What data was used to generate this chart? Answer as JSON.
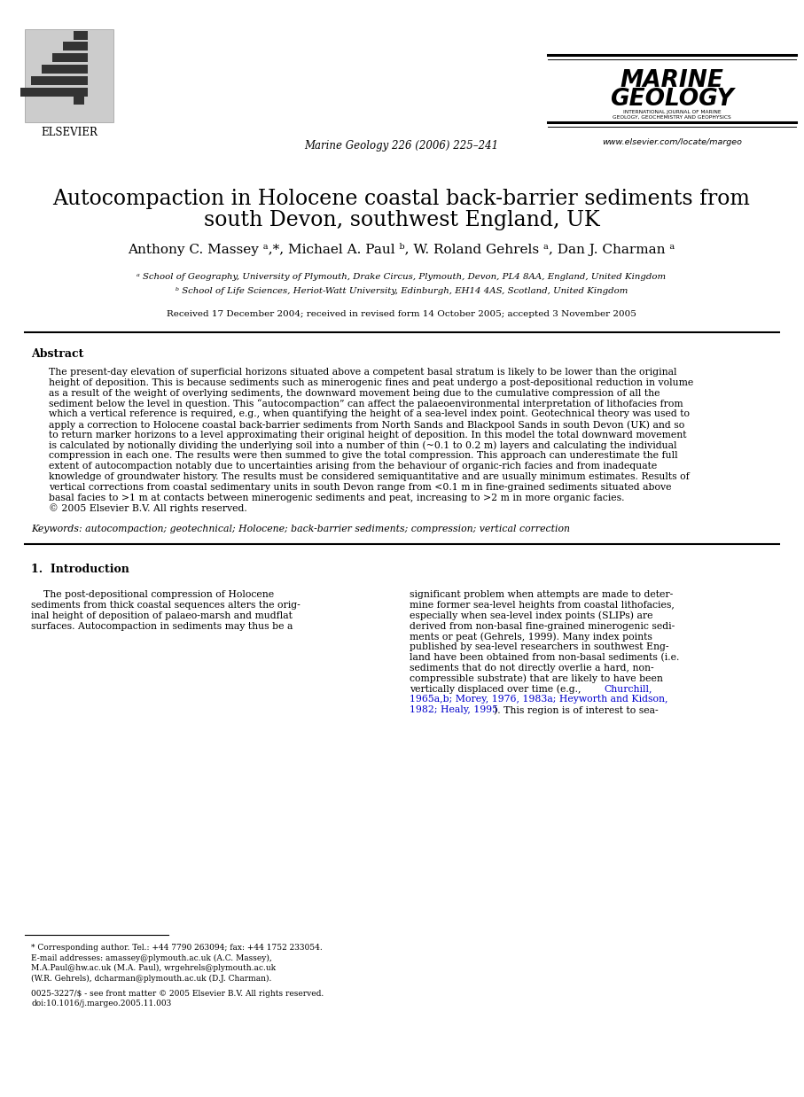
{
  "bg_color": "#ffffff",
  "journal_citation": "Marine Geology 226 (2006) 225–241",
  "journal_name_line1": "MARINE",
  "journal_name_line2": "GEOLOGY",
  "journal_sub1": "INTERNATIONAL JOURNAL OF MARINE",
  "journal_sub2": "GEOLOGY, GEOCHEMISTRY AND GEOPHYSICS",
  "journal_url": "www.elsevier.com/locate/margeo",
  "title_line1": "Autocompaction in Holocene coastal back-barrier sediments from",
  "title_line2": "south Devon, southwest England, UK",
  "authors": "Anthony C. Massey ᵃ,*, Michael A. Paul ᵇ, W. Roland Gehrels ᵃ, Dan J. Charman ᵃ",
  "affil_a": "ᵃ School of Geography, University of Plymouth, Drake Circus, Plymouth, Devon, PL4 8AA, England, United Kingdom",
  "affil_b": "ᵇ School of Life Sciences, Heriot-Watt University, Edinburgh, EH14 4AS, Scotland, United Kingdom",
  "received": "Received 17 December 2004; received in revised form 14 October 2005; accepted 3 November 2005",
  "abstract_title": "Abstract",
  "abstract_lines": [
    "The present-day elevation of superficial horizons situated above a competent basal stratum is likely to be lower than the original",
    "height of deposition. This is because sediments such as minerogenic fines and peat undergo a post-depositional reduction in volume",
    "as a result of the weight of overlying sediments, the downward movement being due to the cumulative compression of all the",
    "sediment below the level in question. This “autocompaction” can affect the palaeoenvironmental interpretation of lithofacies from",
    "which a vertical reference is required, e.g., when quantifying the height of a sea-level index point. Geotechnical theory was used to",
    "apply a correction to Holocene coastal back-barrier sediments from North Sands and Blackpool Sands in south Devon (UK) and so",
    "to return marker horizons to a level approximating their original height of deposition. In this model the total downward movement",
    "is calculated by notionally dividing the underlying soil into a number of thin (~0.1 to 0.2 m) layers and calculating the individual",
    "compression in each one. The results were then summed to give the total compression. This approach can underestimate the full",
    "extent of autocompaction notably due to uncertainties arising from the behaviour of organic-rich facies and from inadequate",
    "knowledge of groundwater history. The results must be considered semiquantitative and are usually minimum estimates. Results of",
    "vertical corrections from coastal sedimentary units in south Devon range from <0.1 m in fine-grained sediments situated above",
    "basal facies to >1 m at contacts between minerogenic sediments and peat, increasing to >2 m in more organic facies.",
    "© 2005 Elsevier B.V. All rights reserved."
  ],
  "keywords": "Keywords: autocompaction; geotechnical; Holocene; back-barrier sediments; compression; vertical correction",
  "sec1_title": "1.  Introduction",
  "col1_lines": [
    "    The post-depositional compression of Holocene",
    "sediments from thick coastal sequences alters the orig-",
    "inal height of deposition of palaeo-marsh and mudflat",
    "surfaces. Autocompaction in sediments may thus be a"
  ],
  "col2_lines_plain": [
    "significant problem when attempts are made to deter-",
    "mine former sea-level heights from coastal lithofacies,",
    "especially when sea-level index points (SLIPs) are",
    "derived from non-basal fine-grained minerogenic sedi-",
    "ments or peat (Gehrels, 1999). Many index points",
    "published by sea-level researchers in southwest Eng-",
    "land have been obtained from non-basal sediments (i.e.",
    "sediments that do not directly overlie a hard, non-",
    "compressible substrate) that are likely to have been",
    "vertically displaced over time (e.g., Churchill,",
    "1965a,b; Morey, 1976, 1983a; Heyworth and Kidson,",
    "1982; Healy, 1995). This region is of interest to sea-"
  ],
  "col2_ref_line_indices": [
    9,
    10,
    11
  ],
  "ref_color": "#0000cc",
  "footnote_line": "* Corresponding author. Tel.: +44 7790 263094; fax: +44 1752 233054.",
  "footnote_email1": "E-mail addresses: amassey@plymouth.ac.uk (A.C. Massey),",
  "footnote_email2": "M.A.Paul@hw.ac.uk (M.A. Paul), wrgehrels@plymouth.ac.uk",
  "footnote_email3": "(W.R. Gehrels), dcharman@plymouth.ac.uk (D.J. Charman).",
  "footnote_issn1": "0025-3227/$ - see front matter © 2005 Elsevier B.V. All rights reserved.",
  "footnote_issn2": "doi:10.1016/j.margeo.2005.11.003"
}
